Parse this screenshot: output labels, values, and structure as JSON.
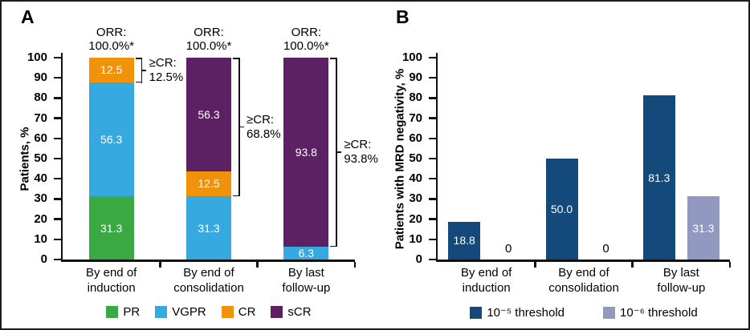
{
  "figure": {
    "background": "#ffffff",
    "border_color": "#1c1c1c"
  },
  "chart_data": [
    {
      "id": "panel_a",
      "panel_label": "A",
      "type": "bar",
      "subtype": "stacked",
      "ylabel": "Patients, %",
      "ylim": [
        0,
        100
      ],
      "ytick_step": 10,
      "grid": false,
      "legend_position": "bottom",
      "categories": [
        "By end of\ninduction",
        "By end of\nconsolidation",
        "By last\nfollow-up"
      ],
      "series": [
        {
          "name": "PR",
          "color": "#3aa944",
          "values": [
            31.3,
            0,
            0
          ],
          "labels": [
            "31.3",
            "",
            ""
          ]
        },
        {
          "name": "VGPR",
          "color": "#36a9e0",
          "values": [
            56.3,
            31.3,
            6.3
          ],
          "labels": [
            "56.3",
            "31.3",
            "6.3"
          ]
        },
        {
          "name": "CR",
          "color": "#f0930a",
          "values": [
            12.5,
            12.5,
            0
          ],
          "labels": [
            "12.5",
            "12.5",
            ""
          ]
        },
        {
          "name": "sCR",
          "color": "#5b2162",
          "values": [
            0,
            56.3,
            93.8
          ],
          "labels": [
            "",
            "56.3",
            "93.8"
          ]
        }
      ],
      "bar_annotations": [
        {
          "category": 0,
          "text": "ORR:\n100.0%*"
        },
        {
          "category": 1,
          "text": "ORR:\n100.0%*"
        },
        {
          "category": 2,
          "text": "ORR:\n100.0%*"
        }
      ],
      "brackets": [
        {
          "category": 0,
          "from": 87.5,
          "to": 100,
          "label": "≥CR:\n12.5%"
        },
        {
          "category": 1,
          "from": 31.3,
          "to": 100,
          "label": "≥CR:\n68.8%"
        },
        {
          "category": 2,
          "from": 6.3,
          "to": 100,
          "label": "≥CR:\n93.8%"
        }
      ]
    },
    {
      "id": "panel_b",
      "panel_label": "B",
      "type": "bar",
      "subtype": "grouped",
      "ylabel": "Patients with MRD negativity, %",
      "ylim": [
        0,
        100
      ],
      "ytick_step": 10,
      "grid": false,
      "legend_position": "bottom",
      "categories": [
        "By end of\ninduction",
        "By end of\nconsolidation",
        "By last\nfollow-up"
      ],
      "series": [
        {
          "name": "10⁻⁵ threshold",
          "color": "#14497c",
          "values": [
            18.8,
            50.0,
            81.3
          ],
          "labels": [
            "18.8",
            "50.0",
            "81.3"
          ]
        },
        {
          "name": "10⁻⁶ threshold",
          "color": "#9199c0",
          "values": [
            0,
            0,
            31.3
          ],
          "labels": [
            "0",
            "0",
            "31.3"
          ]
        }
      ]
    }
  ]
}
